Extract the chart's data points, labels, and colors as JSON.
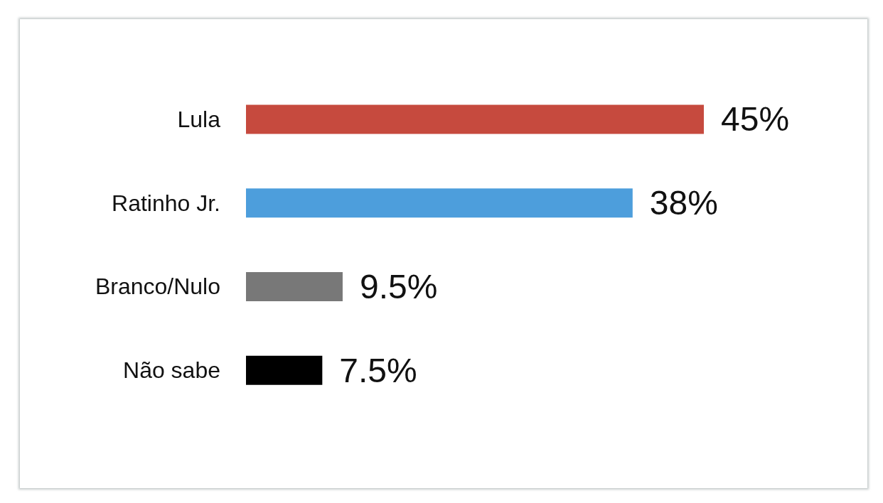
{
  "chart_data": {
    "type": "bar",
    "orientation": "horizontal",
    "categories": [
      "Lula",
      "Ratinho Jr.",
      "Branco/Nulo",
      "Não sabe"
    ],
    "values": [
      45,
      38,
      9.5,
      7.5
    ],
    "colors": [
      "#c64a3e",
      "#4d9edc",
      "#787878",
      "#000000"
    ],
    "value_labels": [
      "45%",
      "38%",
      "9.5%",
      "7.5%"
    ],
    "tick_labels": "y"
  }
}
